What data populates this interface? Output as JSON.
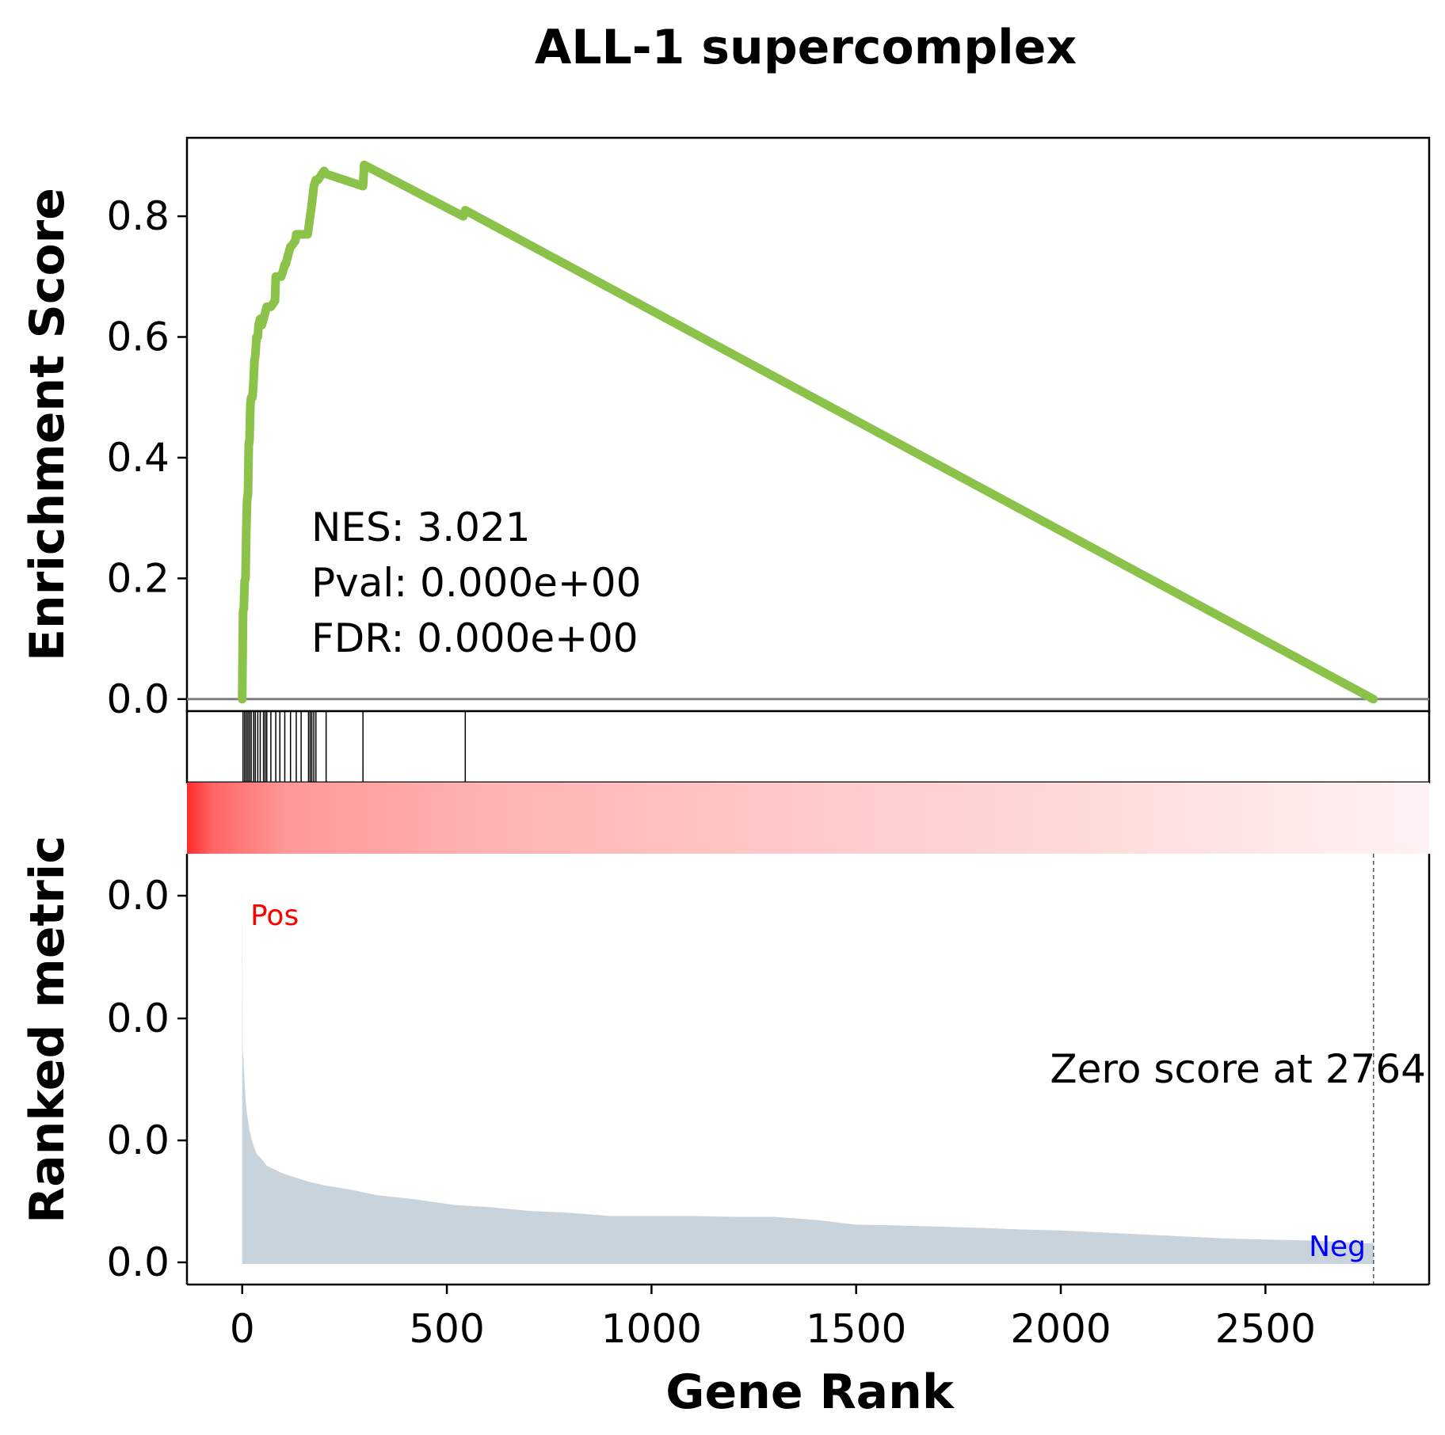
{
  "chart_data": {
    "type": "line",
    "title": "ALL-1 supercomplex",
    "xlabel": "Gene Rank",
    "es_ylabel": "Enrichment Score",
    "rank_ylabel": "Ranked metric",
    "xlim": [
      -135,
      2900
    ],
    "es_ylim": [
      -0.02,
      0.93
    ],
    "x_ticks": [
      0,
      500,
      1000,
      1500,
      2000,
      2500
    ],
    "es_ticks": [
      0.0,
      0.2,
      0.4,
      0.6,
      0.8
    ],
    "rank_tick_labels": [
      "0.0",
      "0.0",
      "0.0",
      "0.0"
    ],
    "stats": {
      "nes": "NES: 3.021",
      "pval": "Pval: 0.000e+00",
      "fdr": "FDR: 0.000e+00"
    },
    "zero_score_label": "Zero score at 2764",
    "zero_score_rank": 2764,
    "pos_label": "Pos",
    "neg_label": "Neg",
    "colors": {
      "es_line": "#8bc34a",
      "baseline": "#808080",
      "metric_fill": "#c8d3dc",
      "pos": "#ff0000",
      "neg": "#0000ff"
    },
    "series": [
      {
        "x": [
          0,
          2,
          4,
          6,
          8,
          10,
          12,
          14,
          16,
          18,
          20,
          22,
          25,
          28,
          30,
          32,
          35,
          38,
          40,
          44,
          48,
          52,
          56,
          60,
          70,
          80,
          82,
          92,
          95,
          100,
          104,
          106,
          118,
          120,
          130,
          132,
          142,
          144,
          160,
          162,
          166,
          170,
          175,
          180,
          185,
          200,
          205,
          295,
          298,
          540,
          545,
          2764
        ],
        "y": [
          0.0,
          0.145,
          0.15,
          0.195,
          0.2,
          0.28,
          0.33,
          0.34,
          0.42,
          0.43,
          0.49,
          0.5,
          0.5,
          0.53,
          0.56,
          0.57,
          0.6,
          0.6,
          0.62,
          0.63,
          0.62,
          0.63,
          0.64,
          0.65,
          0.65,
          0.66,
          0.7,
          0.7,
          0.7,
          0.71,
          0.72,
          0.72,
          0.75,
          0.75,
          0.76,
          0.77,
          0.77,
          0.77,
          0.77,
          0.78,
          0.8,
          0.82,
          0.85,
          0.86,
          0.86,
          0.875,
          0.87,
          0.85,
          0.885,
          0.8,
          0.81,
          0.0
        ]
      }
    ],
    "hit_ranks": [
      2,
      6,
      10,
      14,
      18,
      22,
      28,
      32,
      38,
      44,
      52,
      56,
      60,
      70,
      82,
      92,
      104,
      118,
      132,
      144,
      162,
      166,
      170,
      175,
      180,
      205,
      295,
      545
    ],
    "metric": {
      "x": [
        0,
        1,
        3,
        5,
        8,
        12,
        18,
        25,
        35,
        45,
        60,
        80,
        100,
        130,
        160,
        200,
        260,
        330,
        420,
        520,
        600,
        700,
        800,
        900,
        1000,
        1100,
        1200,
        1300,
        1400,
        1500,
        1600,
        1700,
        1800,
        1900,
        2000,
        2100,
        2200,
        2300,
        2400,
        2500,
        2600,
        2700,
        2764
      ],
      "h": [
        1.0,
        0.55,
        0.52,
        0.48,
        0.42,
        0.38,
        0.34,
        0.31,
        0.28,
        0.27,
        0.25,
        0.24,
        0.23,
        0.22,
        0.21,
        0.2,
        0.19,
        0.175,
        0.165,
        0.15,
        0.145,
        0.135,
        0.13,
        0.122,
        0.122,
        0.122,
        0.12,
        0.12,
        0.112,
        0.1,
        0.098,
        0.095,
        0.092,
        0.088,
        0.085,
        0.08,
        0.075,
        0.07,
        0.065,
        0.062,
        0.06,
        0.055,
        0.052
      ]
    }
  }
}
